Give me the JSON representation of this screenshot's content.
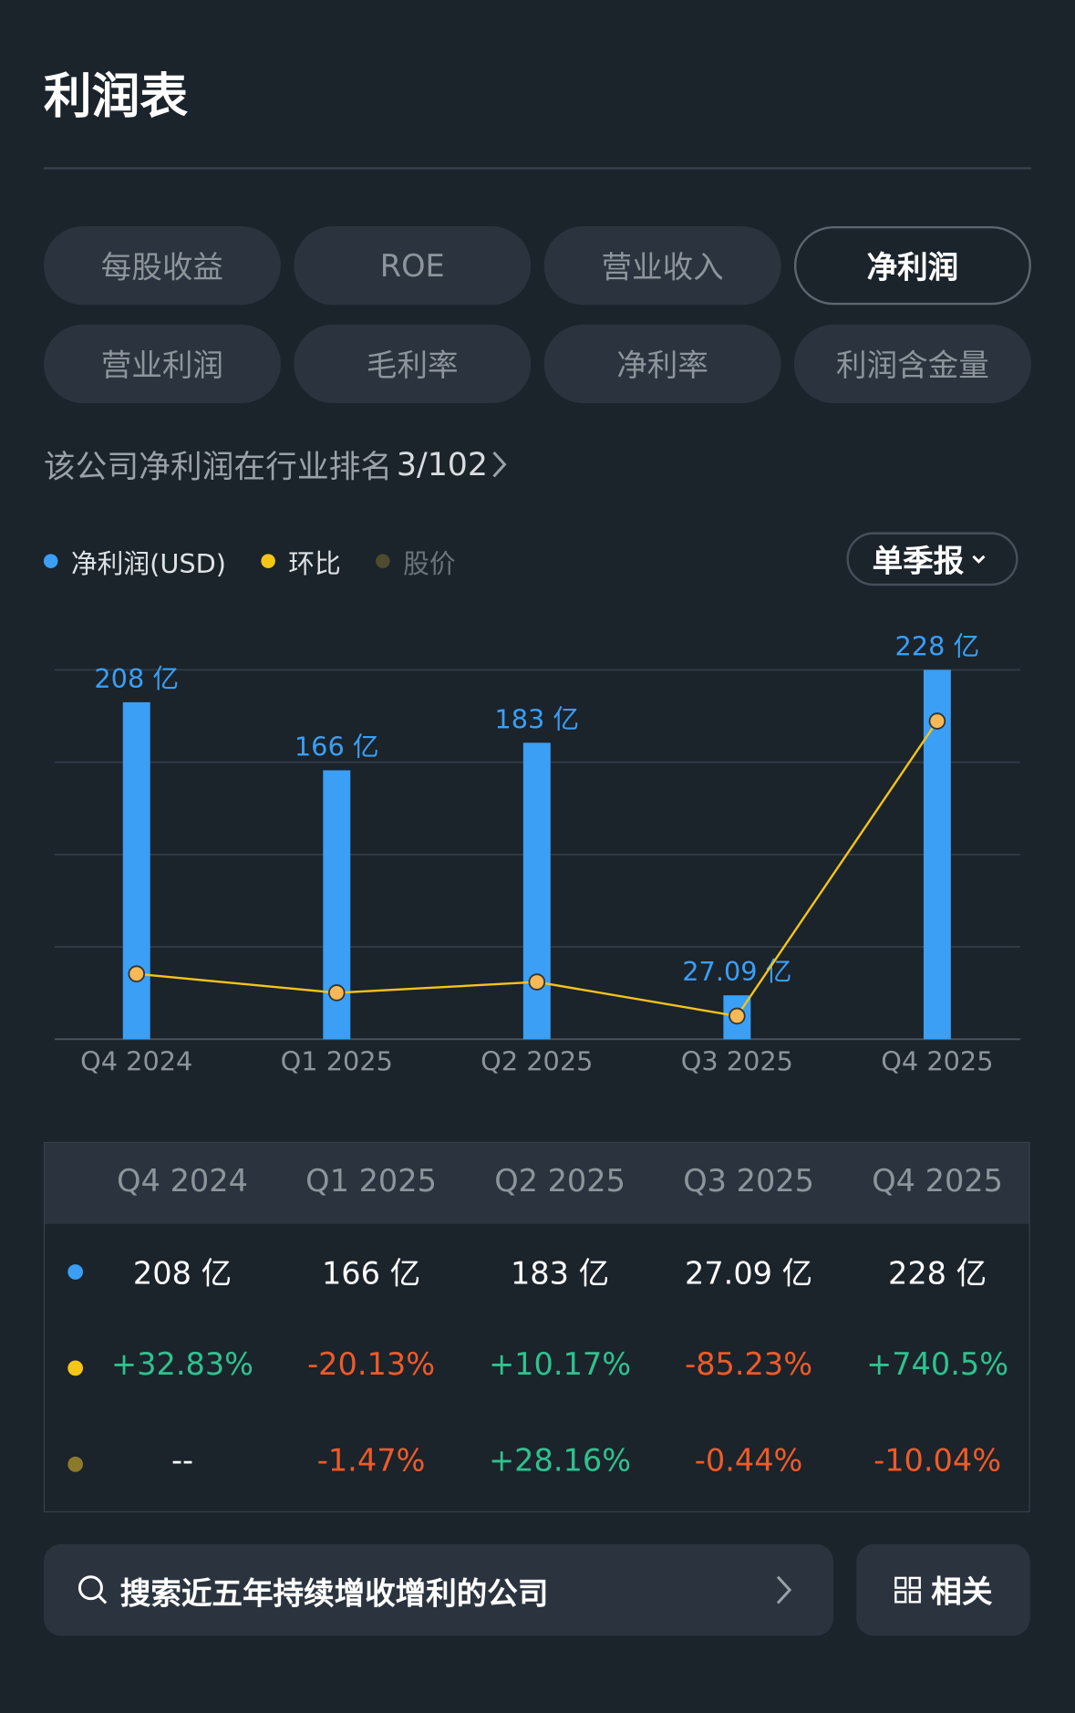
{
  "header": {
    "title": "利润表"
  },
  "tabs": [
    "每股收益",
    "ROE",
    "营业收入",
    "净利润",
    "营业利润",
    "毛利率",
    "净利率",
    "利润含金量"
  ],
  "selected_tab": 3,
  "ranking": {
    "text": "该公司净利润在行业排名",
    "rank": "3/102"
  },
  "legend": {
    "price": "股价"
  },
  "period_selector": "单季报",
  "chart_data": {
    "type": "bar",
    "categories": [
      "Q4 2024",
      "Q1 2025",
      "Q2 2025",
      "Q3 2025",
      "Q4 2025"
    ],
    "series": [
      {
        "name": "净利润(USD)",
        "color": "#3a9ff5",
        "values": [
          208,
          166,
          183,
          27.09,
          228
        ],
        "value_labels": [
          "208 亿",
          "166 亿",
          "183 亿",
          "27.09 亿",
          "228 亿"
        ]
      },
      {
        "name": "环比",
        "type": "line",
        "axis": "y2",
        "color": "#f5c518",
        "values": [
          32.83,
          -20.13,
          10.17,
          -85.23,
          740.5
        ]
      }
    ],
    "ylim": [
      0,
      228
    ],
    "yticks": [
      0,
      57,
      114,
      171,
      228
    ],
    "y2lim": [
      -150,
      884
    ],
    "grid": true
  },
  "table": {
    "rows": [
      [
        "208 亿",
        "166 亿",
        "183 亿",
        "27.09 亿",
        "228 亿"
      ],
      [
        "+32.83%",
        "-20.13%",
        "+10.17%",
        "-85.23%",
        "+740.5%"
      ],
      [
        "--",
        "-1.47%",
        "+28.16%",
        "-0.44%",
        "-10.04%"
      ]
    ]
  },
  "footer": {
    "search": "搜索近五年持续增收增利的公司",
    "related": "相关"
  }
}
